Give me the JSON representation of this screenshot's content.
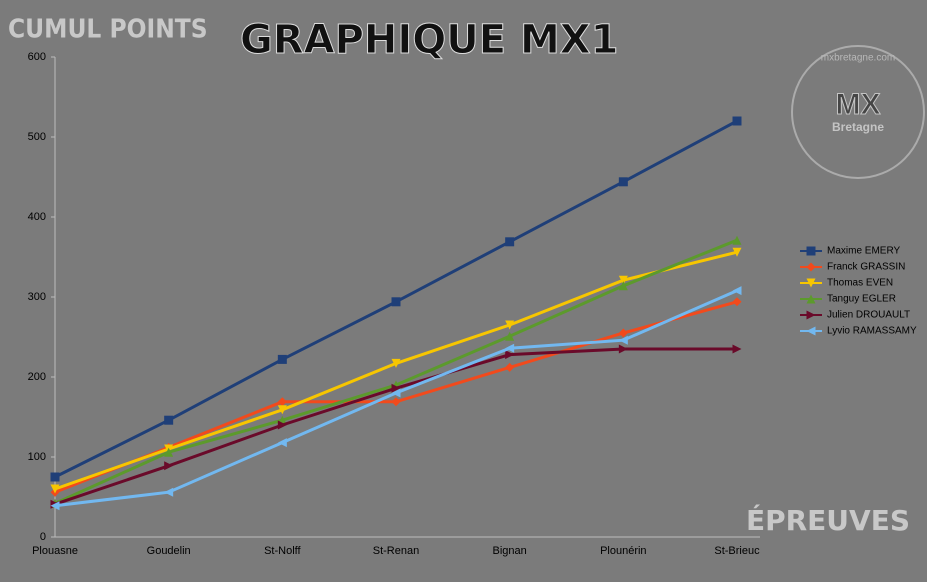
{
  "chart_data": {
    "type": "line",
    "title": "GRAPHIQUE MX1",
    "y_label": "CUMUL POINTS",
    "x_label": "ÉPREUVES",
    "watermark": {
      "logo": "MX",
      "sub": "Bretagne",
      "site": "mxbretagne.com"
    },
    "categories": [
      "Plouasne",
      "Goudelin",
      "St-Nolff",
      "St-Renan",
      "Bignan",
      "Plounérin",
      "St-Brieuc"
    ],
    "series": [
      {
        "name": "Maxime EMERY",
        "color": "#1f3f78",
        "marker": "square",
        "values": [
          75,
          146,
          222,
          294,
          369,
          444,
          520
        ]
      },
      {
        "name": "Franck GRASSIN",
        "color": "#f24a1c",
        "marker": "diamond",
        "values": [
          56,
          112,
          169,
          169,
          212,
          255,
          294
        ]
      },
      {
        "name": "Thomas EVEN",
        "color": "#f7c600",
        "marker": "triangle-down",
        "values": [
          60,
          110,
          159,
          217,
          265,
          321,
          356
        ]
      },
      {
        "name": "Tanguy EGLER",
        "color": "#5c9a2c",
        "marker": "triangle-up",
        "values": [
          42,
          106,
          146,
          190,
          251,
          314,
          371
        ]
      },
      {
        "name": "Julien DROUAULT",
        "color": "#6a0a2a",
        "marker": "triangle-right",
        "values": [
          41,
          89,
          140,
          186,
          228,
          235,
          235
        ]
      },
      {
        "name": "Lyvio RAMASSAMY",
        "color": "#72b8f0",
        "marker": "triangle-left",
        "values": [
          39,
          56,
          118,
          180,
          236,
          246,
          308
        ]
      }
    ],
    "ylim": [
      0,
      600
    ],
    "yticks": [
      0,
      100,
      200,
      300,
      400,
      500,
      600
    ],
    "grid": false,
    "legend": "right"
  }
}
